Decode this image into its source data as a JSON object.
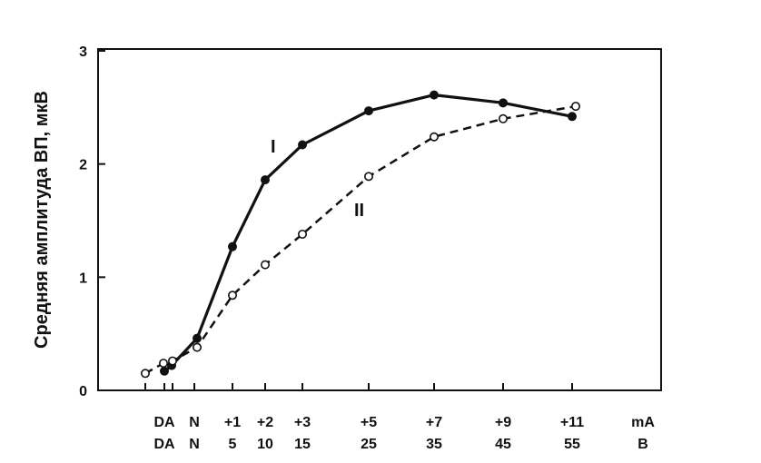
{
  "chart_data": {
    "type": "line",
    "ylabel": "Средняя амплитуда ВП, мкВ",
    "ylim": [
      0,
      3
    ],
    "yticks": [
      "0",
      "1",
      "2",
      "3"
    ],
    "xticks": [
      {
        "row1": "DA",
        "row2": "DA"
      },
      {
        "row1": "N",
        "row2": "N"
      },
      {
        "row1": "+1",
        "row2": "5"
      },
      {
        "row1": "+2",
        "row2": "10"
      },
      {
        "row1": "+3",
        "row2": "15"
      },
      {
        "row1": "+5",
        "row2": "25"
      },
      {
        "row1": "+7",
        "row2": "35"
      },
      {
        "row1": "+9",
        "row2": "45"
      },
      {
        "row1": "+11",
        "row2": "55"
      }
    ],
    "xunit_row1": "mA",
    "xunit_row2": "В",
    "series": [
      {
        "name": "I",
        "style": "solid-filled",
        "points": [
          {
            "x": "DA",
            "y": 0.17
          },
          {
            "x": "DA",
            "y": 0.22
          },
          {
            "x": "N",
            "y": 0.46
          },
          {
            "x": "+1",
            "y": 1.27
          },
          {
            "x": "+2",
            "y": 1.86
          },
          {
            "x": "+3",
            "y": 2.17
          },
          {
            "x": "+5",
            "y": 2.47
          },
          {
            "x": "+7",
            "y": 2.61
          },
          {
            "x": "+9",
            "y": 2.54
          },
          {
            "x": "+11",
            "y": 2.42
          }
        ]
      },
      {
        "name": "II",
        "style": "dashed-open",
        "points": [
          {
            "x": "",
            "y": 0.15
          },
          {
            "x": "",
            "y": 0.24
          },
          {
            "x": "DA",
            "y": 0.26
          },
          {
            "x": "N",
            "y": 0.38
          },
          {
            "x": "+1",
            "y": 0.84
          },
          {
            "x": "+2",
            "y": 1.11
          },
          {
            "x": "+3",
            "y": 1.38
          },
          {
            "x": "+5",
            "y": 1.89
          },
          {
            "x": "+7",
            "y": 2.24
          },
          {
            "x": "+9",
            "y": 2.4
          },
          {
            "x": "+11",
            "y": 2.51
          }
        ]
      }
    ],
    "curve_labels": [
      "I",
      "II"
    ],
    "colors": {
      "line": "#111111",
      "background": "#ffffff"
    }
  }
}
